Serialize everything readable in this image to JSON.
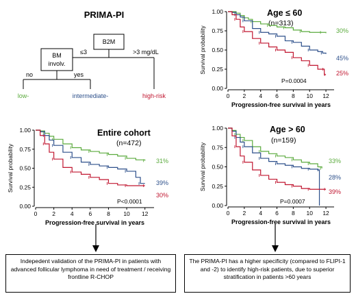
{
  "tree": {
    "title": "PRIMA-PI",
    "node_b2m": "B2M",
    "node_bm_line1": "BM",
    "node_bm_line2": "involv.",
    "branch_left": "≤3",
    "branch_right": ">3 mg/dL",
    "branch_no": "no",
    "branch_yes": "yes",
    "leaf_low": "low-",
    "leaf_intermediate": "intermediate-",
    "leaf_high": "high-risk"
  },
  "colors": {
    "low": "#5aaa3c",
    "intermediate": "#2c4f8a",
    "high": "#c0152f"
  },
  "chart_data": [
    {
      "id": "age_le_60",
      "type": "line",
      "title": "Age ≤ 60",
      "subtitle": "(n=313)",
      "xlabel": "Progression-free survival in years",
      "ylabel": "Survival probability",
      "xlim": [
        0,
        13
      ],
      "ylim": [
        0,
        1
      ],
      "xticks": [
        "0",
        "2",
        "4",
        "6",
        "8",
        "10",
        "12"
      ],
      "yticks": [
        "0.00",
        "0.25",
        "0.50",
        "0.75",
        "1.00"
      ],
      "pvalue": "P=0.0004",
      "end_labels": [
        "30%",
        "45%",
        "25%"
      ],
      "series": [
        {
          "key": "low",
          "values": [
            [
              0,
              1
            ],
            [
              0.5,
              1
            ],
            [
              1,
              0.98
            ],
            [
              1.5,
              0.95
            ],
            [
              2,
              0.92
            ],
            [
              2.5,
              0.9
            ],
            [
              3,
              0.87
            ],
            [
              4,
              0.84
            ],
            [
              5,
              0.82
            ],
            [
              6,
              0.8
            ],
            [
              7,
              0.79
            ],
            [
              8,
              0.76
            ],
            [
              9,
              0.74
            ],
            [
              10,
              0.73
            ],
            [
              11.5,
              0.73
            ],
            [
              12,
              0.72
            ]
          ]
        },
        {
          "key": "intermediate",
          "values": [
            [
              0,
              1
            ],
            [
              0.5,
              0.99
            ],
            [
              1,
              0.96
            ],
            [
              1.5,
              0.93
            ],
            [
              2,
              0.88
            ],
            [
              3,
              0.78
            ],
            [
              4,
              0.73
            ],
            [
              5,
              0.71
            ],
            [
              6,
              0.68
            ],
            [
              7,
              0.62
            ],
            [
              8,
              0.6
            ],
            [
              9,
              0.55
            ],
            [
              10,
              0.5
            ],
            [
              11,
              0.48
            ],
            [
              11.6,
              0.46
            ],
            [
              12,
              0.45
            ]
          ]
        },
        {
          "key": "high",
          "values": [
            [
              0,
              1
            ],
            [
              0.5,
              0.96
            ],
            [
              1,
              0.9
            ],
            [
              1.5,
              0.8
            ],
            [
              2,
              0.74
            ],
            [
              3,
              0.65
            ],
            [
              4,
              0.59
            ],
            [
              5,
              0.54
            ],
            [
              6,
              0.5
            ],
            [
              7,
              0.47
            ],
            [
              8,
              0.4
            ],
            [
              9,
              0.36
            ],
            [
              10,
              0.3
            ],
            [
              11,
              0.25
            ],
            [
              11.8,
              0.25
            ],
            [
              11.8,
              0.18
            ],
            [
              12,
              0.18
            ]
          ]
        }
      ]
    },
    {
      "id": "entire_cohort",
      "type": "line",
      "title": "Entire cohort",
      "subtitle": "(n=472)",
      "xlabel": "Progression-free survival in years",
      "ylabel": "Survival probability",
      "xlim": [
        0,
        13
      ],
      "ylim": [
        0,
        1
      ],
      "xticks": [
        "0",
        "2",
        "4",
        "6",
        "8",
        "10",
        "12"
      ],
      "yticks": [
        "0.00",
        "0.25",
        "0.50",
        "0.75",
        "1.00"
      ],
      "pvalue": "P<0.0001",
      "end_labels": [
        "31%",
        "39%",
        "30%"
      ],
      "series": [
        {
          "key": "low",
          "values": [
            [
              0,
              1
            ],
            [
              0.5,
              0.99
            ],
            [
              1,
              0.96
            ],
            [
              1.5,
              0.92
            ],
            [
              2,
              0.88
            ],
            [
              3,
              0.82
            ],
            [
              4,
              0.77
            ],
            [
              5,
              0.74
            ],
            [
              6,
              0.72
            ],
            [
              7,
              0.7
            ],
            [
              8,
              0.68
            ],
            [
              9,
              0.66
            ],
            [
              10,
              0.63
            ],
            [
              11,
              0.61
            ],
            [
              12,
              0.6
            ]
          ]
        },
        {
          "key": "intermediate",
          "values": [
            [
              0,
              1
            ],
            [
              0.5,
              0.98
            ],
            [
              1,
              0.93
            ],
            [
              1.5,
              0.87
            ],
            [
              2,
              0.8
            ],
            [
              3,
              0.71
            ],
            [
              4,
              0.64
            ],
            [
              5,
              0.58
            ],
            [
              6,
              0.55
            ],
            [
              7,
              0.53
            ],
            [
              8,
              0.51
            ],
            [
              9,
              0.49
            ],
            [
              10,
              0.46
            ],
            [
              11,
              0.38
            ],
            [
              11.5,
              0.3
            ],
            [
              12,
              0.3
            ]
          ]
        },
        {
          "key": "high",
          "values": [
            [
              0,
              1
            ],
            [
              0.5,
              0.93
            ],
            [
              1,
              0.82
            ],
            [
              1.5,
              0.71
            ],
            [
              2,
              0.62
            ],
            [
              3,
              0.51
            ],
            [
              4,
              0.45
            ],
            [
              5,
              0.42
            ],
            [
              6,
              0.38
            ],
            [
              7,
              0.35
            ],
            [
              8,
              0.3
            ],
            [
              9,
              0.28
            ],
            [
              10,
              0.27
            ],
            [
              11,
              0.27
            ],
            [
              12,
              0.27
            ]
          ]
        }
      ]
    },
    {
      "id": "age_gt_60",
      "type": "line",
      "title": "Age > 60",
      "subtitle": "(n=159)",
      "xlabel": "Progression-free survival in years",
      "ylabel": "Survival probability",
      "xlim": [
        0,
        13
      ],
      "ylim": [
        0,
        1
      ],
      "xticks": [
        "0",
        "2",
        "4",
        "6",
        "8",
        "10",
        "12"
      ],
      "yticks": [
        "0.00",
        "0.25",
        "0.50",
        "0.75",
        "1.00"
      ],
      "pvalue": "P=0.0007",
      "end_labels": [
        "33%",
        "28%",
        "39%"
      ],
      "series": [
        {
          "key": "low",
          "values": [
            [
              0,
              1
            ],
            [
              0.5,
              0.97
            ],
            [
              1,
              0.92
            ],
            [
              1.5,
              0.88
            ],
            [
              2,
              0.84
            ],
            [
              3,
              0.76
            ],
            [
              4,
              0.7
            ],
            [
              5,
              0.67
            ],
            [
              6,
              0.64
            ],
            [
              7,
              0.62
            ],
            [
              8,
              0.59
            ],
            [
              9,
              0.56
            ],
            [
              10,
              0.54
            ],
            [
              11,
              0.5
            ],
            [
              11.5,
              0.48
            ]
          ]
        },
        {
          "key": "intermediate",
          "values": [
            [
              0,
              1
            ],
            [
              0.5,
              0.96
            ],
            [
              1,
              0.88
            ],
            [
              1.5,
              0.82
            ],
            [
              2,
              0.76
            ],
            [
              3,
              0.68
            ],
            [
              4,
              0.61
            ],
            [
              5,
              0.57
            ],
            [
              6,
              0.54
            ],
            [
              7,
              0.52
            ],
            [
              8,
              0.5
            ],
            [
              9,
              0.48
            ],
            [
              10,
              0.47
            ],
            [
              11,
              0.46
            ],
            [
              11.2,
              0.46
            ],
            [
              11.2,
              0.0
            ]
          ]
        },
        {
          "key": "high",
          "values": [
            [
              0,
              1
            ],
            [
              0.5,
              0.9
            ],
            [
              1,
              0.76
            ],
            [
              1.5,
              0.64
            ],
            [
              2,
              0.56
            ],
            [
              3,
              0.46
            ],
            [
              4,
              0.39
            ],
            [
              5,
              0.34
            ],
            [
              6,
              0.3
            ],
            [
              7,
              0.27
            ],
            [
              8,
              0.25
            ],
            [
              9,
              0.22
            ],
            [
              10,
              0.21
            ],
            [
              11,
              0.21
            ],
            [
              12,
              0.21
            ]
          ]
        }
      ]
    }
  ],
  "boxes": {
    "left": "Indepedent validation of the PRIMA-PI in patients with advanced follicular lymphoma in need of treatment / receiving frontline R-CHOP",
    "right": "The PRIMA-PI has a higher specificity (compared to FLIPI-1 and -2) to identify high-risk patients, due to superior stratification in patients >60 years"
  }
}
